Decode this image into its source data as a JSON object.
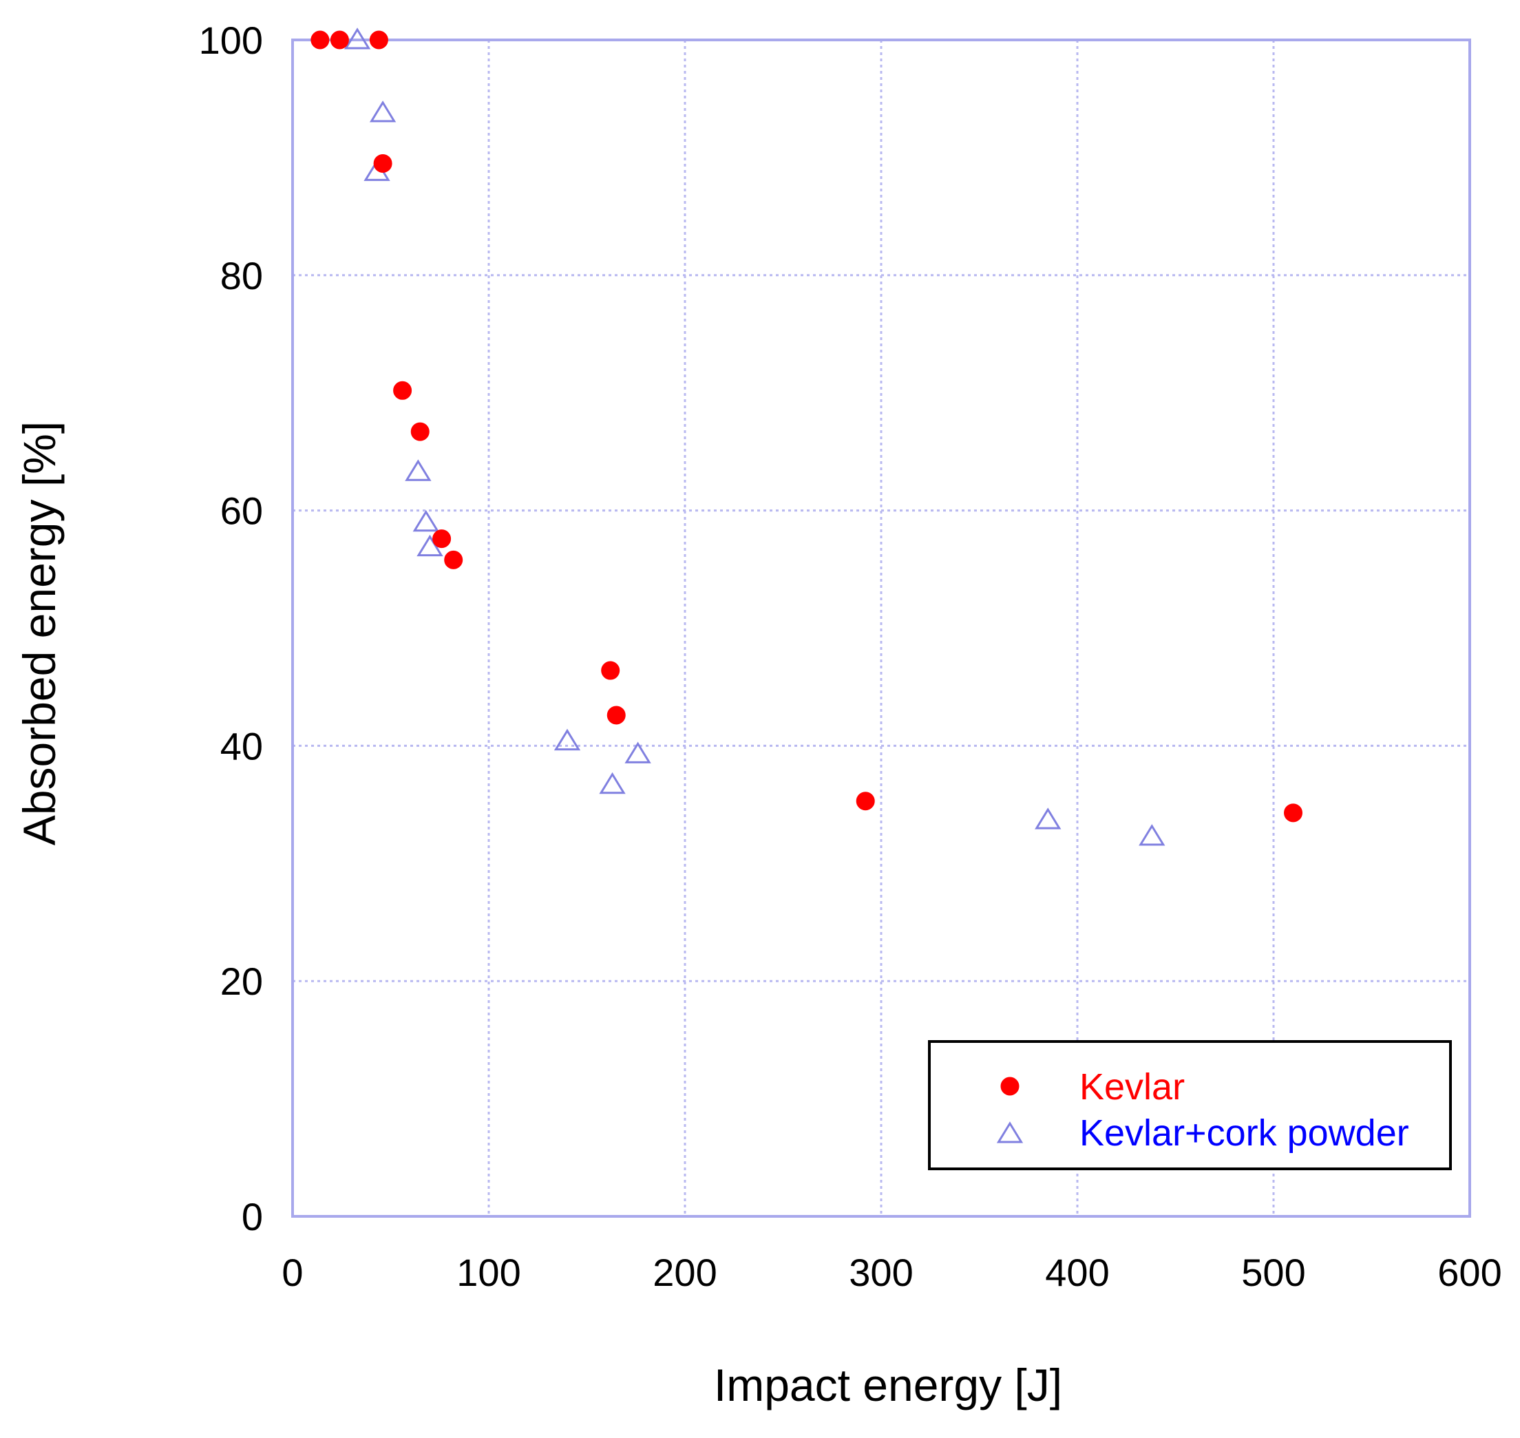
{
  "chart_data": {
    "type": "scatter",
    "title": "",
    "xlabel": "Impact energy [J]",
    "ylabel": "Absorbed energy [%]",
    "xlim": [
      0,
      600
    ],
    "ylim": [
      0,
      100
    ],
    "x_ticks": [
      "0",
      "100",
      "200",
      "300",
      "400",
      "500",
      "600"
    ],
    "y_ticks": [
      "0",
      "20",
      "40",
      "60",
      "80",
      "100"
    ],
    "grid": true,
    "legend_position": "bottom-right",
    "series": [
      {
        "name": "Kevlar",
        "marker": "filled-circle",
        "color": "#ff0000",
        "label_color": "#ff0000",
        "points": [
          [
            14,
            100
          ],
          [
            24,
            100
          ],
          [
            44,
            100
          ],
          [
            46,
            89.5
          ],
          [
            56,
            70.2
          ],
          [
            65,
            66.7
          ],
          [
            76,
            57.6
          ],
          [
            82,
            55.8
          ],
          [
            162,
            46.4
          ],
          [
            165,
            42.6
          ],
          [
            292,
            35.3
          ],
          [
            510,
            34.3
          ]
        ]
      },
      {
        "name": "Kevlar+cork powder",
        "marker": "open-triangle",
        "color": "#8080e0",
        "label_color": "#0000ff",
        "points": [
          [
            33,
            100
          ],
          [
            46,
            93.8
          ],
          [
            43,
            88.8
          ],
          [
            64,
            63.3
          ],
          [
            68,
            59.0
          ],
          [
            70,
            56.9
          ],
          [
            140,
            40.4
          ],
          [
            163,
            36.7
          ],
          [
            176,
            39.3
          ],
          [
            385,
            33.7
          ],
          [
            438,
            32.3
          ]
        ]
      }
    ]
  }
}
